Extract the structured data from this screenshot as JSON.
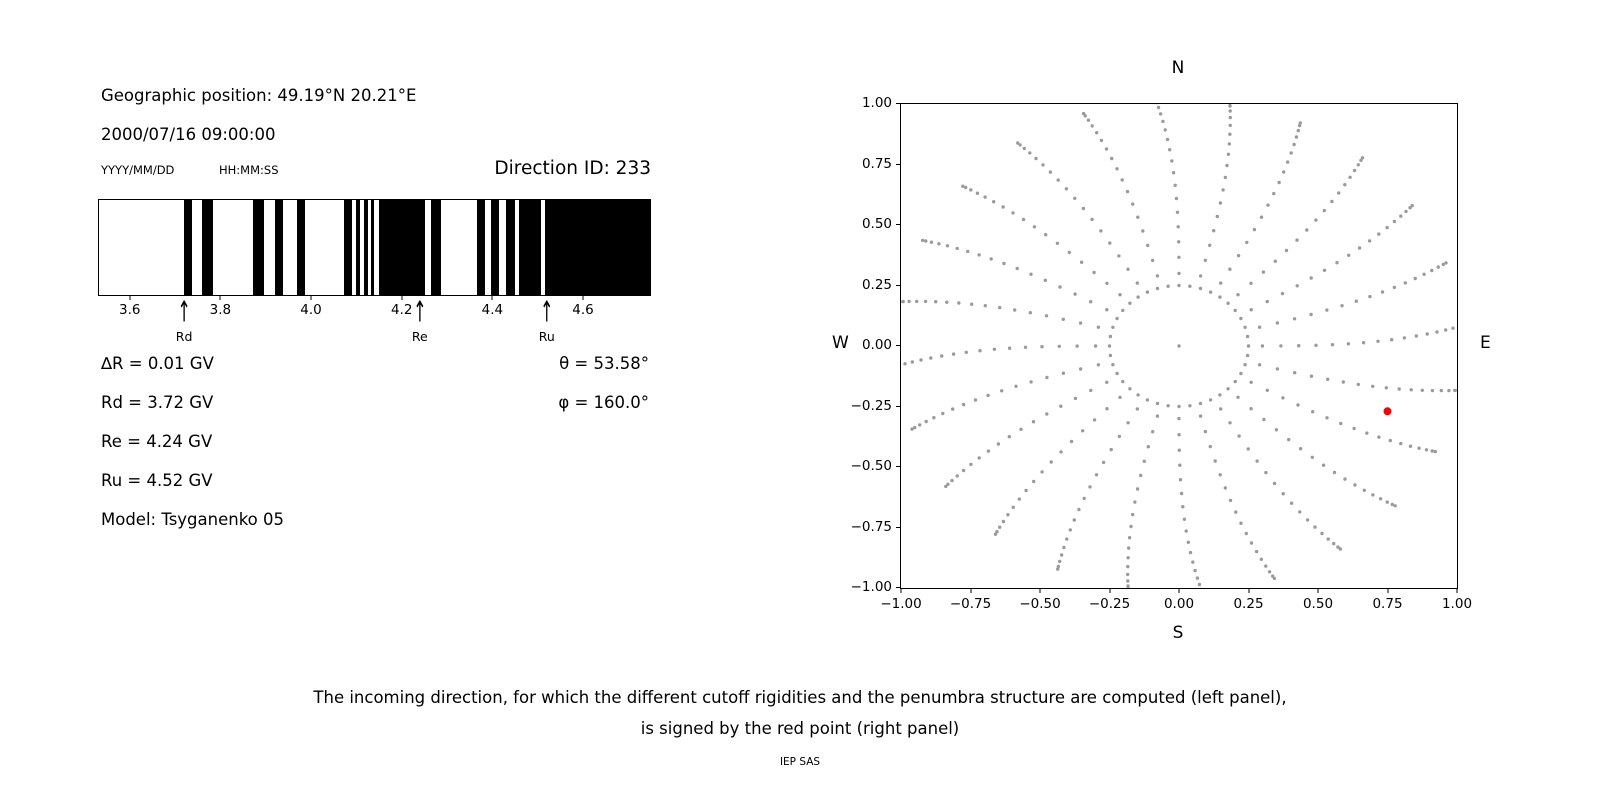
{
  "page": {
    "caption_line1": "The incoming direction, for which the different cutoff rigidities and the penumbra structure are computed (left panel),",
    "caption_line2": "is signed by the red point (right panel)",
    "footer": "IEP SAS"
  },
  "left_panel": {
    "geo_position": "Geographic position: 49.19°N 20.21°E",
    "datetime": "2000/07/16 09:00:00",
    "date_format": "YYYY/MM/DD",
    "time_format": "HH:MM:SS",
    "direction_id": "Direction ID: 233",
    "values": {
      "delta_r": "∆R = 0.01 GV",
      "rd": "Rd = 3.72 GV",
      "re": "Re = 4.24 GV",
      "ru": "Ru = 4.52 GV",
      "model": "Model: Tsyganenko 05",
      "theta": "θ = 53.58°",
      "phi": "φ = 160.0°"
    }
  },
  "chart_data": [
    {
      "type": "bar",
      "name": "penumbra-structure",
      "description": "Cosmic-ray penumbra: black bands mark forbidden rigidity intervals between lower cutoff Rd and upper cutoff Ru",
      "x_range": [
        3.53,
        4.75
      ],
      "x_ticks": [
        3.6,
        3.8,
        4.0,
        4.2,
        4.4,
        4.6
      ],
      "bars_gv": [
        [
          3.718,
          3.735
        ],
        [
          3.757,
          3.782
        ],
        [
          3.872,
          3.895
        ],
        [
          3.92,
          3.938
        ],
        [
          3.968,
          3.986
        ],
        [
          4.073,
          4.09
        ],
        [
          4.098,
          4.108
        ],
        [
          4.116,
          4.126
        ],
        [
          4.132,
          4.14
        ],
        [
          4.15,
          4.252
        ],
        [
          4.266,
          4.288
        ],
        [
          4.368,
          4.384
        ],
        [
          4.398,
          4.416
        ],
        [
          4.432,
          4.452
        ],
        [
          4.46,
          4.508
        ],
        [
          4.518,
          4.75
        ]
      ],
      "markers": [
        {
          "label": "Rd",
          "value": 3.72
        },
        {
          "label": "Re",
          "value": 4.24
        },
        {
          "label": "Ru",
          "value": 4.52
        }
      ],
      "bar_color": "#000000",
      "background": "#ffffff"
    },
    {
      "type": "scatter",
      "name": "direction-map",
      "description": "Sky map of incoming directions: grey dots form 24 radial spokes plus an inner ring; the red point marks the computed incoming direction",
      "xlim": [
        -1.0,
        1.0
      ],
      "ylim": [
        -1.0,
        1.0
      ],
      "x_ticks": [
        -1.0,
        -0.75,
        -0.5,
        -0.25,
        0.0,
        0.25,
        0.5,
        0.75,
        1.0
      ],
      "y_ticks": [
        -1.0,
        -0.75,
        -0.5,
        -0.25,
        0.0,
        0.25,
        0.5,
        0.75,
        1.0
      ],
      "compass_labels": {
        "top": "N",
        "bottom": "S",
        "left": "W",
        "right": "E"
      },
      "dot_color": "#9a9a9a",
      "dot_radius": 1.7,
      "red_point": {
        "x": 0.75,
        "y": -0.27,
        "color": "#ff0000",
        "radius": 4
      },
      "pattern": {
        "spokes": 24,
        "spoke_r_start": 0.3,
        "spoke_r_end": 1.02,
        "dots_per_spoke": 17,
        "outer_cluster_exp": 1.5,
        "curvature_deg": 9,
        "inner_ring_radius": 0.25,
        "inner_ring_dots": 40,
        "center_dot": true
      }
    }
  ]
}
